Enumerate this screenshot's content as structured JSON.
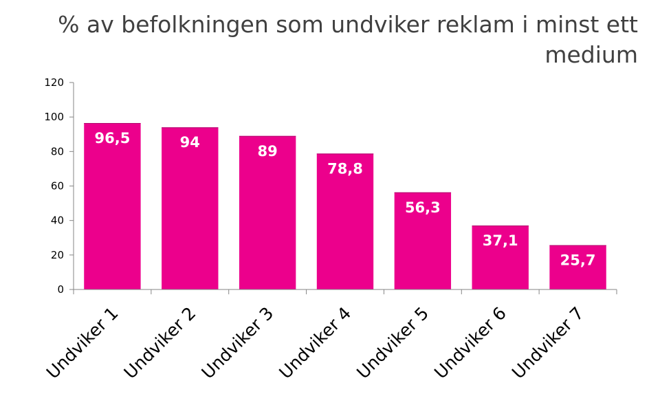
{
  "chart_data": {
    "type": "bar",
    "title": "% av befolkningen som undviker reklam i minst ett medium",
    "categories": [
      "Undviker 1",
      "Undviker 2",
      "Undviker 3",
      "Undviker 4",
      "Undviker 5",
      "Undviker 6",
      "Undviker 7"
    ],
    "values": [
      96.5,
      94,
      89,
      78.8,
      56.3,
      37.1,
      25.7
    ],
    "data_labels": [
      "96,5",
      "94",
      "89",
      "78,8",
      "56,3",
      "37,1",
      "25,7"
    ],
    "yticks": [
      "0",
      "20",
      "40",
      "60",
      "80",
      "100",
      "120"
    ],
    "ylim": [
      0,
      120
    ],
    "xlabel": "",
    "ylabel": "",
    "grid": false,
    "legend": "none",
    "bar_color": "#EC008C"
  }
}
